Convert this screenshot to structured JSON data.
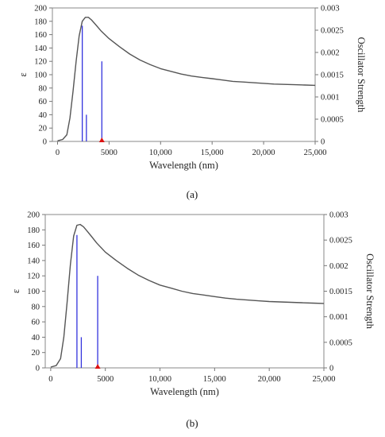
{
  "chart_data": [
    {
      "type": "line",
      "caption": "(a)",
      "xlabel": "Wavelength (nm)",
      "ylabel": "ε",
      "ylabel_right": "Oscillator Strength",
      "xlim": [
        -500,
        25000
      ],
      "ylim": [
        0,
        200
      ],
      "ylim_right": [
        0,
        0.003
      ],
      "x_ticks": [
        0,
        5000,
        10000,
        15000,
        20000,
        25000
      ],
      "x_tick_labels": [
        "0",
        "5000",
        "10,000",
        "15,000",
        "20,000",
        "25,000"
      ],
      "y_ticks": [
        0,
        20,
        40,
        60,
        80,
        100,
        120,
        140,
        160,
        180,
        200
      ],
      "y_tick_labels": [
        "0",
        "20",
        "40",
        "60",
        "80",
        "100",
        "120",
        "140",
        "160",
        "180",
        "200"
      ],
      "y_right_ticks": [
        0,
        0.0005,
        0.001,
        0.0015,
        0.002,
        0.0025,
        0.003
      ],
      "y_right_tick_labels": [
        "0",
        "0.0005",
        "0.001",
        "0.0015",
        "0.002",
        "0.0025",
        "0.003"
      ],
      "grid": false,
      "curve_color": "#555555",
      "stick_color": "#3333dd",
      "marker_color": "#dd1111",
      "absorption_curve": {
        "x": [
          0,
          500,
          900,
          1200,
          1500,
          1800,
          2100,
          2400,
          2700,
          3000,
          3300,
          3700,
          4200,
          5000,
          6000,
          7000,
          8000,
          9000,
          10000,
          11000,
          12000,
          13000,
          14000,
          15000,
          16000,
          17000,
          18000,
          19000,
          20000,
          21000,
          22000,
          23000,
          24000,
          25000
        ],
        "y": [
          1,
          3,
          10,
          35,
          75,
          120,
          158,
          180,
          186,
          186,
          182,
          175,
          166,
          154,
          142,
          131,
          122,
          115,
          109,
          105,
          101,
          98,
          96,
          94,
          92,
          90,
          89,
          88,
          87,
          86,
          85.5,
          85,
          84.5,
          84
        ]
      },
      "oscillator_sticks": {
        "x": [
          2400,
          2800,
          4300
        ],
        "y": [
          0.0026,
          0.0006,
          0.0018
        ]
      },
      "marker": {
        "x": 4300,
        "y": 0
      }
    },
    {
      "type": "line",
      "caption": "(b)",
      "xlabel": "Wavelength (nm)",
      "ylabel": "ε",
      "ylabel_right": "Oscillator Strength",
      "xlim": [
        -500,
        25000
      ],
      "ylim": [
        0,
        200
      ],
      "ylim_right": [
        0,
        0.003
      ],
      "x_ticks": [
        0,
        5000,
        10000,
        15000,
        20000,
        25000
      ],
      "x_tick_labels": [
        "0",
        "5000",
        "10,000",
        "15,000",
        "20,000",
        "25,000"
      ],
      "y_ticks": [
        0,
        20,
        40,
        60,
        80,
        100,
        120,
        140,
        160,
        180,
        200
      ],
      "y_tick_labels": [
        "0",
        "20",
        "40",
        "60",
        "80",
        "100",
        "120",
        "140",
        "160",
        "180",
        "200"
      ],
      "y_right_ticks": [
        0,
        0.0005,
        0.001,
        0.0015,
        0.002,
        0.0025,
        0.003
      ],
      "y_right_tick_labels": [
        "0",
        "0.0005",
        "0.001",
        "0.0015",
        "0.002",
        "0.0025",
        "0.003"
      ],
      "grid": false,
      "curve_color": "#555555",
      "stick_color": "#3333dd",
      "marker_color": "#dd1111",
      "absorption_curve": {
        "x": [
          0,
          500,
          900,
          1200,
          1500,
          1800,
          2100,
          2400,
          2700,
          3000,
          3300,
          3700,
          4200,
          5000,
          6000,
          7000,
          8000,
          9000,
          10000,
          11000,
          12000,
          13000,
          14000,
          15000,
          16000,
          17000,
          18000,
          19000,
          20000,
          21000,
          22000,
          23000,
          24000,
          25000
        ],
        "y": [
          1,
          3,
          12,
          40,
          85,
          135,
          172,
          186,
          187,
          184,
          179,
          172,
          163,
          151,
          140,
          130,
          121,
          114,
          108,
          104,
          100,
          97,
          95,
          93,
          91,
          89.5,
          88.5,
          87.5,
          86.5,
          86,
          85.5,
          85,
          84.5,
          84
        ]
      },
      "oscillator_sticks": {
        "x": [
          2400,
          2800,
          4300
        ],
        "y": [
          0.0026,
          0.0006,
          0.0018
        ]
      },
      "marker": {
        "x": 4300,
        "y": 0
      }
    }
  ]
}
